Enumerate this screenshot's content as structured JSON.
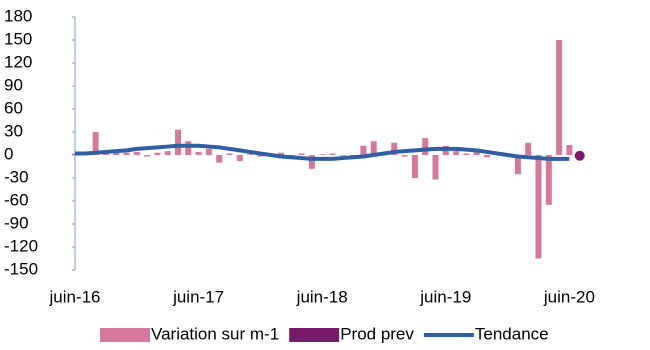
{
  "chart_data": {
    "type": "bar",
    "categories": [
      "juin-16",
      null,
      null,
      null,
      null,
      null,
      null,
      null,
      null,
      null,
      null,
      null,
      "juin-17",
      null,
      null,
      null,
      null,
      null,
      null,
      null,
      null,
      null,
      null,
      null,
      "juin-18",
      null,
      null,
      null,
      null,
      null,
      null,
      null,
      null,
      null,
      null,
      null,
      "juin-19",
      null,
      null,
      null,
      null,
      null,
      null,
      null,
      null,
      null,
      null,
      null,
      "juin-20",
      null
    ],
    "series": [
      {
        "name": "Variation sur m-1",
        "mark": "bar",
        "color": "#d6789c",
        "values": [
          2,
          4,
          30,
          6,
          5,
          3,
          4,
          -2,
          3,
          5,
          33,
          18,
          4,
          8,
          -10,
          2,
          -8,
          1,
          -2,
          1,
          3,
          -1,
          2,
          -18,
          1,
          2,
          -1,
          -2,
          12,
          18,
          3,
          16,
          -2,
          -30,
          22,
          -32,
          12,
          5,
          2,
          5,
          -3,
          3,
          -2,
          -25,
          16,
          -135,
          -65,
          150,
          13,
          null
        ]
      },
      {
        "name": "Prod prev",
        "mark": "point",
        "color": "#7a1a6a",
        "values": [
          null,
          null,
          null,
          null,
          null,
          null,
          null,
          null,
          null,
          null,
          null,
          null,
          null,
          null,
          null,
          null,
          null,
          null,
          null,
          null,
          null,
          null,
          null,
          null,
          null,
          null,
          null,
          null,
          null,
          null,
          null,
          null,
          null,
          null,
          null,
          null,
          null,
          null,
          null,
          null,
          null,
          null,
          null,
          null,
          null,
          null,
          null,
          null,
          null,
          -1
        ]
      },
      {
        "name": "Tendance",
        "mark": "line",
        "color": "#2e5ea6",
        "values": [
          2,
          2,
          3,
          4,
          5,
          6,
          8,
          9,
          10,
          11,
          12,
          12,
          12,
          11,
          10,
          8,
          6,
          4,
          2,
          0,
          -2,
          -3,
          -4,
          -5,
          -5,
          -5,
          -4,
          -3,
          -2,
          0,
          2,
          4,
          5,
          6,
          7,
          8,
          8,
          8,
          7,
          6,
          4,
          2,
          0,
          -2,
          -3,
          -4,
          -5,
          -5,
          -5,
          null
        ]
      }
    ],
    "ylim": [
      -150,
      180
    ],
    "yticks": [
      -150,
      -120,
      -90,
      -60,
      -30,
      0,
      30,
      60,
      90,
      120,
      150,
      180
    ]
  }
}
